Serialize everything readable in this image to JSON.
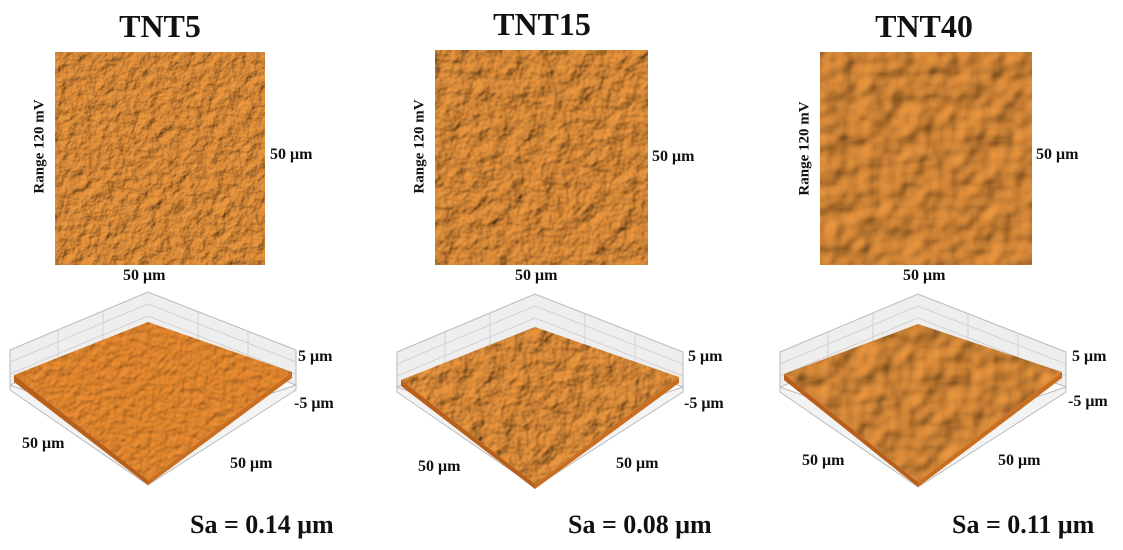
{
  "panels": [
    {
      "title": "TNT5",
      "range_label": "Range 120 mV",
      "scan_side_label": "50 μm",
      "scan_bottom_label": "50 μm",
      "z_top_label": "5 μm",
      "z_bottom_label": "-5 μm",
      "axis3d_left_label": "50 μm",
      "axis3d_right_label": "50 μm",
      "sa_label": "Sa = 0.14 μm"
    },
    {
      "title": "TNT15",
      "range_label": "Range 120 mV",
      "scan_side_label": "50 μm",
      "scan_bottom_label": "50 μm",
      "z_top_label": "5 μm",
      "z_bottom_label": "-5 μm",
      "axis3d_left_label": "50 μm",
      "axis3d_right_label": "50 μm",
      "sa_label": "Sa = 0.08 μm"
    },
    {
      "title": "TNT40",
      "range_label": "Range 120 mV",
      "scan_side_label": "50 μm",
      "scan_bottom_label": "50 μm",
      "z_top_label": "5 μm",
      "z_bottom_label": "-5 μm",
      "axis3d_left_label": "50 μm",
      "axis3d_right_label": "50 μm",
      "sa_label": "Sa = 0.11 μm"
    }
  ],
  "colors": {
    "surface_base": "#e88a2c",
    "surface_light": "#f6b36a",
    "surface_dark": "#a54f0e",
    "grid_wall": "#d9d9d9"
  }
}
